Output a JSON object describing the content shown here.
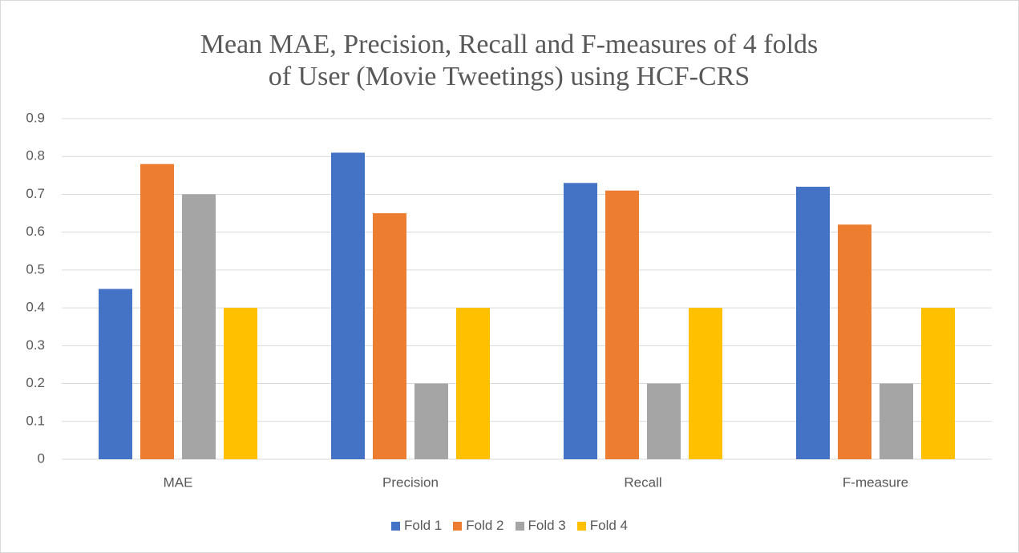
{
  "chart_data": {
    "type": "bar",
    "title": "Mean MAE, Precision, Recall and F-measures of 4 folds of User (Movie Tweetings) using HCF-CRS",
    "categories": [
      "MAE",
      "Precision",
      "Recall",
      "F-measure"
    ],
    "series": [
      {
        "name": "Fold 1",
        "color": "#4472c4",
        "values": [
          0.45,
          0.81,
          0.73,
          0.72
        ]
      },
      {
        "name": "Fold 2",
        "color": "#ed7d31",
        "values": [
          0.78,
          0.65,
          0.71,
          0.62
        ]
      },
      {
        "name": "Fold 3",
        "color": "#a5a5a5",
        "values": [
          0.7,
          0.2,
          0.2,
          0.2
        ]
      },
      {
        "name": "Fold 4",
        "color": "#ffc000",
        "values": [
          0.4,
          0.4,
          0.4,
          0.4
        ]
      }
    ],
    "ylim": [
      0,
      0.9
    ],
    "yticks": [
      0,
      0.1,
      0.2,
      0.3,
      0.4,
      0.5,
      0.6,
      0.7,
      0.8,
      0.9
    ],
    "grid": true,
    "legend": "bottom"
  }
}
